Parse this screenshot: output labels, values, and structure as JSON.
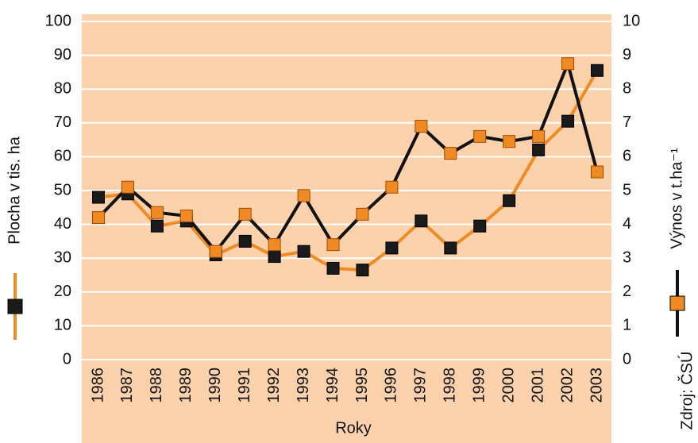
{
  "chart_data": {
    "type": "line",
    "xlabel": "Roky",
    "source": "Zdroj: ČSÚ",
    "categories": [
      "1986",
      "1987",
      "1988",
      "1989",
      "1990",
      "1991",
      "1992",
      "1993",
      "1994",
      "1995",
      "1996",
      "1997",
      "1998",
      "1999",
      "2000",
      "2001",
      "2002",
      "2003"
    ],
    "series": [
      {
        "name": "Plocha v tis. ha",
        "color": "#f08a24",
        "marker_color": "#1a1a1a",
        "axis": "y",
        "values": [
          48,
          49,
          39.5,
          41,
          31,
          35,
          30.5,
          32,
          27,
          26.5,
          33,
          41,
          33,
          39.5,
          47,
          62,
          70.5,
          85.5
        ]
      },
      {
        "name": "Výnos v t.ha⁻¹",
        "color": "#111111",
        "marker_color": "#f08a24",
        "axis": "y2",
        "values": [
          4.2,
          5.1,
          4.35,
          4.25,
          3.2,
          4.3,
          3.4,
          4.85,
          3.4,
          4.3,
          5.1,
          6.9,
          6.1,
          6.6,
          6.45,
          6.6,
          8.75,
          5.55
        ]
      }
    ],
    "ylim": [
      0,
      100
    ],
    "yticks": [
      0,
      10,
      20,
      30,
      40,
      50,
      60,
      70,
      80,
      90,
      100
    ],
    "y2lim": [
      0,
      10
    ],
    "y2ticks": [
      0,
      1,
      2,
      3,
      4,
      5,
      6,
      7,
      8,
      9,
      10
    ],
    "grid": true,
    "background": "#fcd2ac"
  }
}
